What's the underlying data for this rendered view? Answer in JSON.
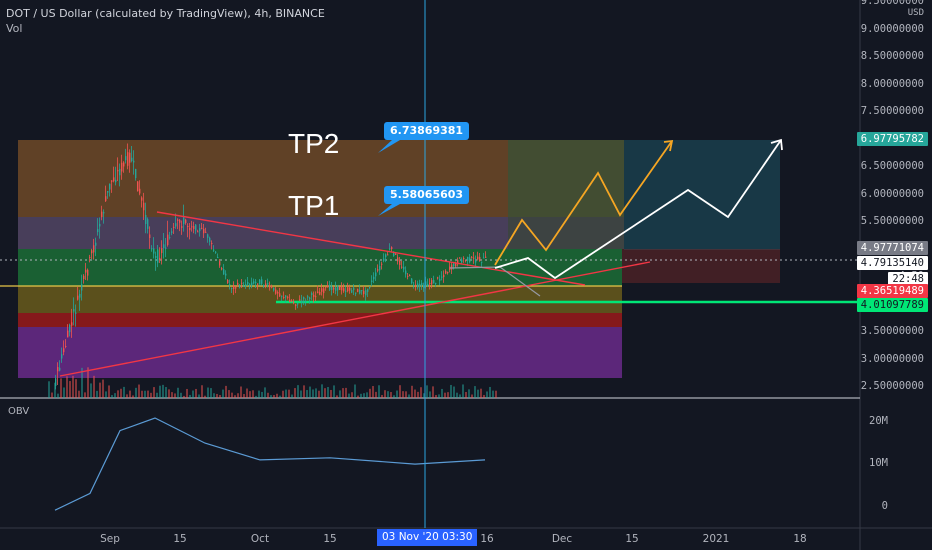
{
  "header": {
    "title": "DOT / US Dollar (calculated by TradingView), 4h, BINANCE",
    "volume_label": "Vol"
  },
  "obv_label": "OBV",
  "annotations": {
    "tp2": "TP2",
    "tp1": "TP1",
    "tp2_price": "6.73869381",
    "tp1_price": "5.58065603"
  },
  "price_axis": {
    "currency": "USD",
    "ticks": [
      "9.50000000",
      "9.00000000",
      "8.50000000",
      "8.00000000",
      "7.50000000",
      "7.00000000",
      "6.50000000",
      "6.00000000",
      "5.50000000",
      "5.00000000",
      "4.50",
      "4.00000000",
      "3.50000000",
      "3.00000000",
      "2.50000000"
    ]
  },
  "price_tags": [
    {
      "value": "6.97795782",
      "color": "#26a69a"
    },
    {
      "value": "4.97771074",
      "color": "#787b86"
    },
    {
      "value": "4.79135140",
      "color": "#ffffff"
    },
    {
      "value": "22:48",
      "color": "#ffffff"
    },
    {
      "value": "4.36519489",
      "color": "#f23645"
    },
    {
      "value": "4.01097789",
      "color": "#00e676"
    }
  ],
  "obv_axis": {
    "ticks": [
      "20M",
      "10M",
      "0"
    ]
  },
  "time_axis": {
    "ticks": [
      "Sep",
      "15",
      "Oct",
      "15",
      "16",
      "Dec",
      "15",
      "2021",
      "18"
    ],
    "crosshair_label": "03 Nov '20   03:30"
  },
  "colors": {
    "background": "#131722",
    "candle_up": "#26a69a",
    "candle_down": "#ef5350",
    "crosshair": "#2ba5e0",
    "obv_line": "#5b9bd5"
  },
  "chart_data": {
    "type": "line",
    "title": "DOT / US Dollar (calculated by TradingView), 4h, BINANCE",
    "xlabel": "",
    "ylabel": "",
    "price_series_approx": {
      "name": "",
      "x": [
        "2020-08-21",
        "2020-08-25",
        "2020-08-28",
        "2020-09-01",
        "2020-09-05",
        "2020-09-10",
        "2020-09-15",
        "2020-09-20",
        "2020-09-25",
        "2020-10-01",
        "2020-10-08",
        "2020-10-15",
        "2020-10-22",
        "2020-10-27",
        "2020-11-01",
        "2020-11-05",
        "2020-11-10",
        "2020-11-15"
      ],
      "values": [
        2.6,
        3.9,
        4.8,
        6.2,
        6.7,
        4.8,
        5.5,
        5.3,
        4.3,
        4.4,
        4.0,
        4.3,
        4.2,
        5.0,
        4.3,
        4.4,
        4.8,
        4.8
      ]
    },
    "obv_series_approx": {
      "name": "",
      "x": [
        "2020-08-21",
        "2020-08-28",
        "2020-09-03",
        "2020-09-10",
        "2020-09-20",
        "2020-10-01",
        "2020-10-15",
        "2020-11-01",
        "2020-11-15"
      ],
      "values": [
        -1000000,
        3000000,
        18000000,
        21000000,
        15000000,
        11000000,
        11500000,
        10000000,
        11000000
      ]
    },
    "ylim": [
      2.4,
      9.6
    ]
  }
}
